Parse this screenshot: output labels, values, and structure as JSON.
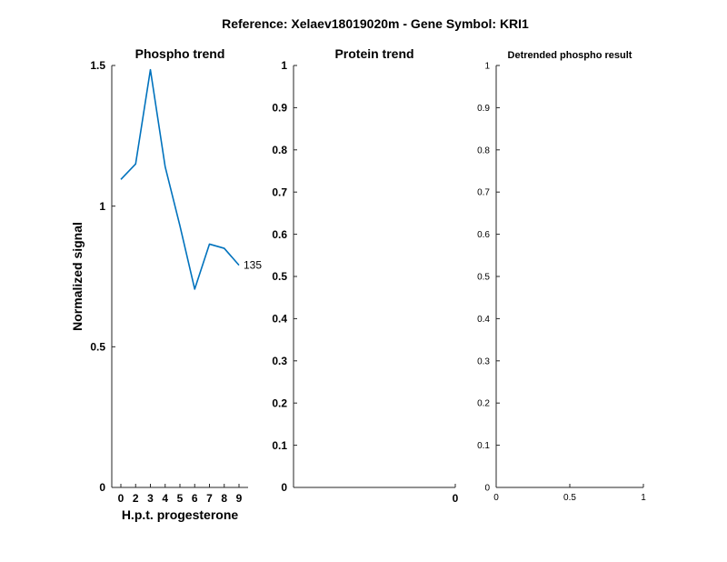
{
  "figure_title": "Reference:  Xelaev18019020m - Gene Symbol:  KRI1",
  "colors": {
    "series": "#0072BD",
    "axis": "#262626",
    "background": "#ffffff"
  },
  "chart_data": [
    {
      "id": "phospho",
      "type": "line",
      "title": "Phospho trend",
      "xlabel": "H.p.t. progesterone",
      "ylabel": "Normalized signal",
      "categories": [
        "0",
        "2",
        "3",
        "4",
        "5",
        "6",
        "7",
        "8",
        "9"
      ],
      "series": [
        {
          "values": [
            1.095,
            1.15,
            1.485,
            1.14,
            0.93,
            0.705,
            0.865,
            0.85,
            0.79
          ],
          "end_label": "135"
        }
      ],
      "ylim": [
        0,
        1.5
      ],
      "yticks": [
        "0",
        "0.5",
        "1",
        "1.5"
      ],
      "grid": false
    },
    {
      "id": "protein",
      "type": "line",
      "title": "Protein trend",
      "xlabel": "",
      "ylabel": "",
      "series": [],
      "xticks": [
        "0"
      ],
      "ylim": [
        0,
        1
      ],
      "yticks": [
        "0",
        "0.1",
        "0.2",
        "0.3",
        "0.4",
        "0.5",
        "0.6",
        "0.7",
        "0.8",
        "0.9",
        "1"
      ],
      "grid": false
    },
    {
      "id": "detrended",
      "type": "line",
      "title": "Detrended phospho result",
      "xlabel": "",
      "ylabel": "",
      "series": [],
      "xlim": [
        0,
        1
      ],
      "xticks": [
        "0",
        "0.5",
        "1"
      ],
      "ylim": [
        0,
        1
      ],
      "yticks": [
        "0",
        "0.1",
        "0.2",
        "0.3",
        "0.4",
        "0.5",
        "0.6",
        "0.7",
        "0.8",
        "0.9",
        "1"
      ],
      "grid": false
    }
  ]
}
